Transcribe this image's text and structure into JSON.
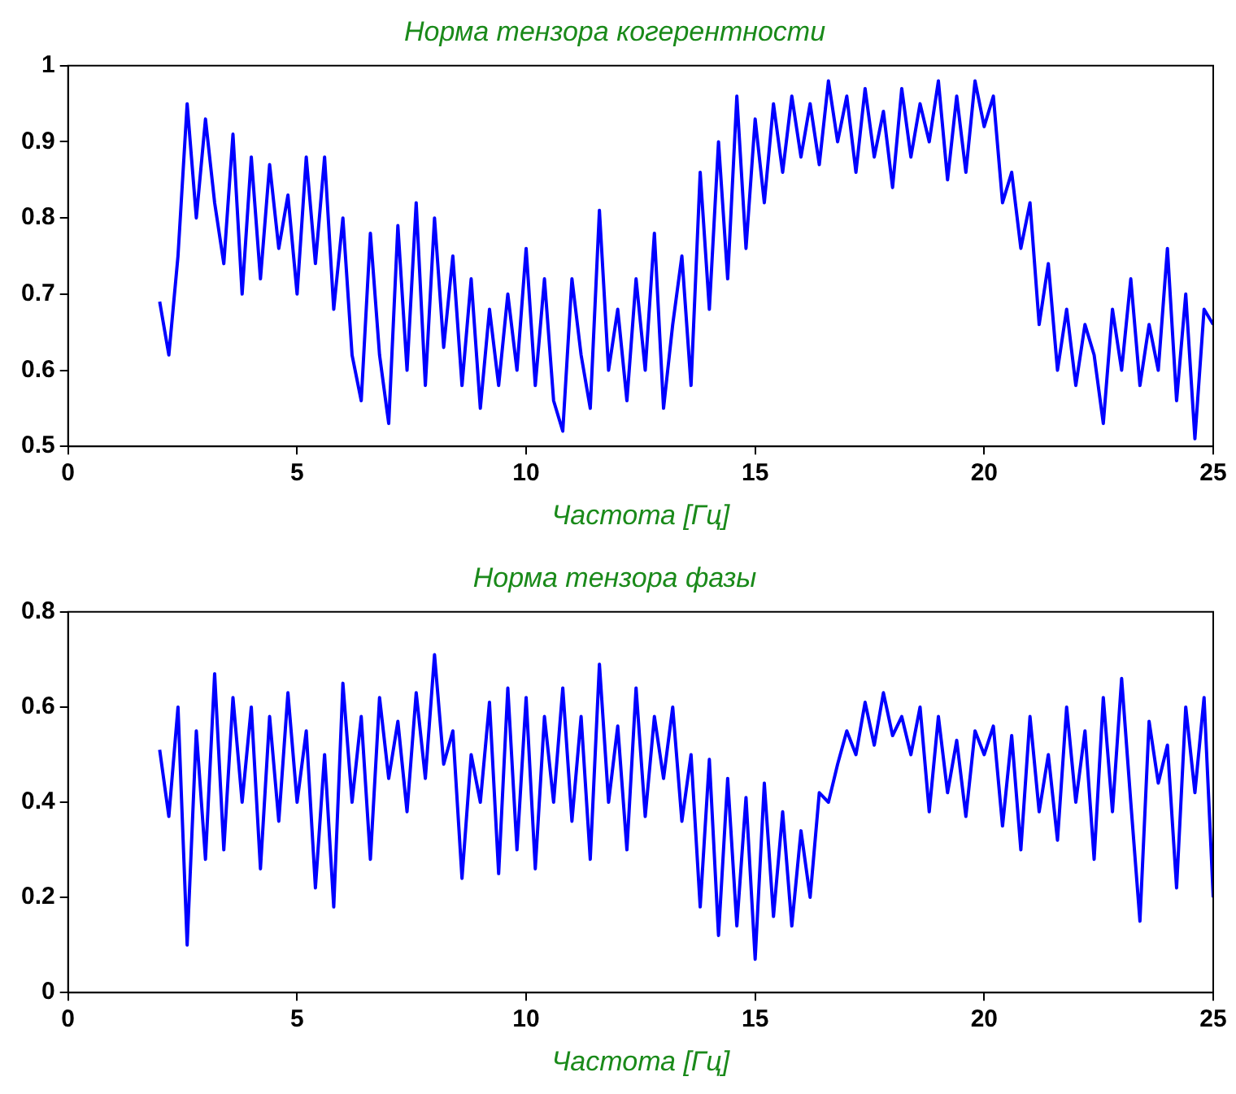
{
  "chart_data": [
    {
      "type": "line",
      "title": "Норма тензора когерентности",
      "xlabel": "Частота [Гц]",
      "xlim": [
        0,
        25
      ],
      "xticks": [
        0,
        5,
        10,
        15,
        20,
        25
      ],
      "ylim": [
        0.5,
        1
      ],
      "yticks": [
        0.5,
        0.6,
        0.7,
        0.8,
        0.9,
        1
      ],
      "grid": false,
      "legend": false,
      "x": [
        2.0,
        2.2,
        2.4,
        2.6,
        2.8,
        3.0,
        3.2,
        3.4,
        3.6,
        3.8,
        4.0,
        4.2,
        4.4,
        4.6,
        4.8,
        5.0,
        5.2,
        5.4,
        5.6,
        5.8,
        6.0,
        6.2,
        6.4,
        6.6,
        6.8,
        7.0,
        7.2,
        7.4,
        7.6,
        7.8,
        8.0,
        8.2,
        8.4,
        8.6,
        8.8,
        9.0,
        9.2,
        9.4,
        9.6,
        9.8,
        10.0,
        10.2,
        10.4,
        10.6,
        10.8,
        11.0,
        11.2,
        11.4,
        11.6,
        11.8,
        12.0,
        12.2,
        12.4,
        12.6,
        12.8,
        13.0,
        13.2,
        13.4,
        13.6,
        13.8,
        14.0,
        14.2,
        14.4,
        14.6,
        14.8,
        15.0,
        15.2,
        15.4,
        15.6,
        15.8,
        16.0,
        16.2,
        16.4,
        16.6,
        16.8,
        17.0,
        17.2,
        17.4,
        17.6,
        17.8,
        18.0,
        18.2,
        18.4,
        18.6,
        18.8,
        19.0,
        19.2,
        19.4,
        19.6,
        19.8,
        20.0,
        20.2,
        20.4,
        20.6,
        20.8,
        21.0,
        21.2,
        21.4,
        21.6,
        21.8,
        22.0,
        22.2,
        22.4,
        22.6,
        22.8,
        23.0,
        23.2,
        23.4,
        23.6,
        23.8,
        24.0,
        24.2,
        24.4,
        24.6,
        24.8,
        25.0
      ],
      "series": [
        {
          "color": "#0000ff",
          "values": [
            0.69,
            0.62,
            0.75,
            0.95,
            0.8,
            0.93,
            0.82,
            0.74,
            0.91,
            0.7,
            0.88,
            0.72,
            0.87,
            0.76,
            0.83,
            0.7,
            0.88,
            0.74,
            0.88,
            0.68,
            0.8,
            0.62,
            0.56,
            0.78,
            0.62,
            0.53,
            0.79,
            0.6,
            0.82,
            0.58,
            0.8,
            0.63,
            0.75,
            0.58,
            0.72,
            0.55,
            0.68,
            0.58,
            0.7,
            0.6,
            0.76,
            0.58,
            0.72,
            0.56,
            0.52,
            0.72,
            0.62,
            0.55,
            0.81,
            0.6,
            0.68,
            0.56,
            0.72,
            0.6,
            0.78,
            0.55,
            0.66,
            0.75,
            0.58,
            0.86,
            0.68,
            0.9,
            0.72,
            0.96,
            0.76,
            0.93,
            0.82,
            0.95,
            0.86,
            0.96,
            0.88,
            0.95,
            0.87,
            0.98,
            0.9,
            0.96,
            0.86,
            0.97,
            0.88,
            0.94,
            0.84,
            0.97,
            0.88,
            0.95,
            0.9,
            0.98,
            0.85,
            0.96,
            0.86,
            0.98,
            0.92,
            0.96,
            0.82,
            0.86,
            0.76,
            0.82,
            0.66,
            0.74,
            0.6,
            0.68,
            0.58,
            0.66,
            0.62,
            0.53,
            0.68,
            0.6,
            0.72,
            0.58,
            0.66,
            0.6,
            0.76,
            0.56,
            0.7,
            0.51,
            0.68,
            0.66
          ]
        }
      ]
    },
    {
      "type": "line",
      "title": "Норма тензора фазы",
      "xlabel": "Частота [Гц]",
      "xlim": [
        0,
        25
      ],
      "xticks": [
        0,
        5,
        10,
        15,
        20,
        25
      ],
      "ylim": [
        0,
        0.8
      ],
      "yticks": [
        0,
        0.2,
        0.4,
        0.6,
        0.8
      ],
      "grid": false,
      "legend": false,
      "x": [
        2.0,
        2.2,
        2.4,
        2.6,
        2.8,
        3.0,
        3.2,
        3.4,
        3.6,
        3.8,
        4.0,
        4.2,
        4.4,
        4.6,
        4.8,
        5.0,
        5.2,
        5.4,
        5.6,
        5.8,
        6.0,
        6.2,
        6.4,
        6.6,
        6.8,
        7.0,
        7.2,
        7.4,
        7.6,
        7.8,
        8.0,
        8.2,
        8.4,
        8.6,
        8.8,
        9.0,
        9.2,
        9.4,
        9.6,
        9.8,
        10.0,
        10.2,
        10.4,
        10.6,
        10.8,
        11.0,
        11.2,
        11.4,
        11.6,
        11.8,
        12.0,
        12.2,
        12.4,
        12.6,
        12.8,
        13.0,
        13.2,
        13.4,
        13.6,
        13.8,
        14.0,
        14.2,
        14.4,
        14.6,
        14.8,
        15.0,
        15.2,
        15.4,
        15.6,
        15.8,
        16.0,
        16.2,
        16.4,
        16.6,
        16.8,
        17.0,
        17.2,
        17.4,
        17.6,
        17.8,
        18.0,
        18.2,
        18.4,
        18.6,
        18.8,
        19.0,
        19.2,
        19.4,
        19.6,
        19.8,
        20.0,
        20.2,
        20.4,
        20.6,
        20.8,
        21.0,
        21.2,
        21.4,
        21.6,
        21.8,
        22.0,
        22.2,
        22.4,
        22.6,
        22.8,
        23.0,
        23.2,
        23.4,
        23.6,
        23.8,
        24.0,
        24.2,
        24.4,
        24.6,
        24.8,
        25.0
      ],
      "series": [
        {
          "color": "#0000ff",
          "values": [
            0.51,
            0.37,
            0.6,
            0.1,
            0.55,
            0.28,
            0.67,
            0.3,
            0.62,
            0.4,
            0.6,
            0.26,
            0.58,
            0.36,
            0.63,
            0.4,
            0.55,
            0.22,
            0.5,
            0.18,
            0.65,
            0.4,
            0.58,
            0.28,
            0.62,
            0.45,
            0.57,
            0.38,
            0.63,
            0.45,
            0.71,
            0.48,
            0.55,
            0.24,
            0.5,
            0.4,
            0.61,
            0.25,
            0.64,
            0.3,
            0.62,
            0.26,
            0.58,
            0.4,
            0.64,
            0.36,
            0.58,
            0.28,
            0.69,
            0.4,
            0.56,
            0.3,
            0.64,
            0.37,
            0.58,
            0.45,
            0.6,
            0.36,
            0.5,
            0.18,
            0.49,
            0.12,
            0.45,
            0.14,
            0.41,
            0.07,
            0.44,
            0.16,
            0.38,
            0.14,
            0.34,
            0.2,
            0.42,
            0.4,
            0.48,
            0.55,
            0.5,
            0.61,
            0.52,
            0.63,
            0.54,
            0.58,
            0.5,
            0.6,
            0.38,
            0.58,
            0.42,
            0.53,
            0.37,
            0.55,
            0.5,
            0.56,
            0.35,
            0.54,
            0.3,
            0.58,
            0.38,
            0.5,
            0.32,
            0.6,
            0.4,
            0.55,
            0.28,
            0.62,
            0.38,
            0.66,
            0.4,
            0.15,
            0.57,
            0.44,
            0.52,
            0.22,
            0.6,
            0.42,
            0.62,
            0.2
          ]
        }
      ]
    }
  ]
}
